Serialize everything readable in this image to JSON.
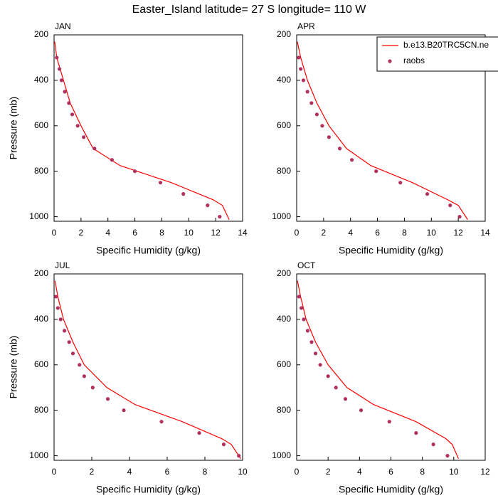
{
  "title": "Easter_Island  latitude= 27 S longitude= 110 W",
  "chart_data": [
    {
      "type": "line",
      "title": "JAN",
      "xlabel": "Specific Humidity (g/kg)",
      "ylabel": "Pressure (mb)",
      "xlim": [
        0,
        14
      ],
      "xticks": [
        0,
        2,
        4,
        6,
        8,
        10,
        12,
        14
      ],
      "ylim": [
        200,
        1020
      ],
      "y_reversed": true,
      "yticks": [
        200,
        400,
        600,
        800,
        1000
      ],
      "series": [
        {
          "color": "#ff0000",
          "marker": "line",
          "x": [
            0.05,
            0.2,
            0.7,
            1.2,
            2.0,
            2.9,
            4.9,
            8.7,
            11.8,
            12.5,
            13.0
          ],
          "y": [
            230,
            300,
            400,
            500,
            600,
            700,
            775,
            850,
            925,
            950,
            1013
          ]
        },
        {
          "color": "#b03060",
          "marker": "dot",
          "x": [
            0.2,
            0.4,
            0.55,
            0.8,
            1.1,
            1.35,
            1.75,
            2.2,
            3.0,
            4.3,
            6.0,
            7.9,
            9.6,
            11.4,
            12.3
          ],
          "y": [
            300,
            350,
            400,
            450,
            500,
            550,
            600,
            650,
            700,
            750,
            800,
            850,
            900,
            950,
            1000
          ]
        }
      ]
    },
    {
      "type": "line",
      "title": "APR",
      "xlabel": "Specific Humidity (g/kg)",
      "legend": "upper right",
      "xlim": [
        0,
        14
      ],
      "xticks": [
        0,
        2,
        4,
        6,
        8,
        10,
        12,
        14
      ],
      "ylim": [
        200,
        1020
      ],
      "y_reversed": true,
      "yticks": [
        200,
        400,
        600,
        800,
        1000
      ],
      "series": [
        {
          "name": "b.e13.B20TRC5CN.ne",
          "color": "#ff0000",
          "marker": "line",
          "x": [
            0.05,
            0.3,
            0.8,
            1.5,
            2.4,
            3.7,
            5.5,
            8.6,
            11.2,
            12.0,
            12.7
          ],
          "y": [
            230,
            300,
            400,
            500,
            600,
            700,
            775,
            850,
            925,
            950,
            1013
          ]
        },
        {
          "name": "raobs",
          "color": "#b03060",
          "marker": "dot",
          "x": [
            0.15,
            0.3,
            0.5,
            0.8,
            1.1,
            1.5,
            1.9,
            2.4,
            3.2,
            4.1,
            5.9,
            7.7,
            9.7,
            11.4,
            12.1
          ],
          "y": [
            300,
            350,
            400,
            450,
            500,
            550,
            600,
            650,
            700,
            750,
            800,
            850,
            900,
            950,
            1000
          ]
        }
      ]
    },
    {
      "type": "line",
      "title": "JUL",
      "xlabel": "Specific Humidity (g/kg)",
      "ylabel": "Pressure (mb)",
      "xlim": [
        0,
        10
      ],
      "xticks": [
        0,
        2,
        4,
        6,
        8,
        10
      ],
      "ylim": [
        200,
        1020
      ],
      "y_reversed": true,
      "yticks": [
        200,
        400,
        600,
        800,
        1000
      ],
      "series": [
        {
          "color": "#ff0000",
          "marker": "line",
          "x": [
            0.05,
            0.2,
            0.5,
            1.0,
            1.6,
            2.8,
            4.3,
            6.8,
            8.9,
            9.4,
            9.9
          ],
          "y": [
            230,
            300,
            400,
            500,
            600,
            700,
            775,
            850,
            925,
            950,
            1013
          ]
        },
        {
          "color": "#b03060",
          "marker": "dot",
          "x": [
            0.1,
            0.2,
            0.35,
            0.55,
            0.8,
            1.0,
            1.35,
            1.6,
            2.05,
            2.85,
            3.7,
            5.7,
            7.7,
            9.0,
            9.8
          ],
          "y": [
            300,
            350,
            400,
            450,
            500,
            550,
            600,
            650,
            700,
            750,
            800,
            850,
            900,
            950,
            1000
          ]
        }
      ]
    },
    {
      "type": "line",
      "title": "OCT",
      "xlabel": "Specific Humidity (g/kg)",
      "xlim": [
        0,
        12
      ],
      "xticks": [
        0,
        2,
        4,
        6,
        8,
        10,
        12
      ],
      "ylim": [
        200,
        1020
      ],
      "y_reversed": true,
      "yticks": [
        200,
        400,
        600,
        800,
        1000
      ],
      "series": [
        {
          "color": "#ff0000",
          "marker": "line",
          "x": [
            0.05,
            0.25,
            0.6,
            1.2,
            2.0,
            3.2,
            4.9,
            7.6,
            9.5,
            9.9,
            10.3
          ],
          "y": [
            230,
            300,
            400,
            500,
            600,
            700,
            775,
            850,
            925,
            950,
            1013
          ]
        },
        {
          "color": "#b03060",
          "marker": "dot",
          "x": [
            0.15,
            0.3,
            0.45,
            0.7,
            0.95,
            1.2,
            1.5,
            2.0,
            2.5,
            3.1,
            4.1,
            5.9,
            7.6,
            8.7,
            9.6
          ],
          "y": [
            300,
            350,
            400,
            450,
            500,
            550,
            600,
            650,
            700,
            750,
            800,
            850,
            900,
            950,
            1000
          ]
        }
      ]
    }
  ]
}
